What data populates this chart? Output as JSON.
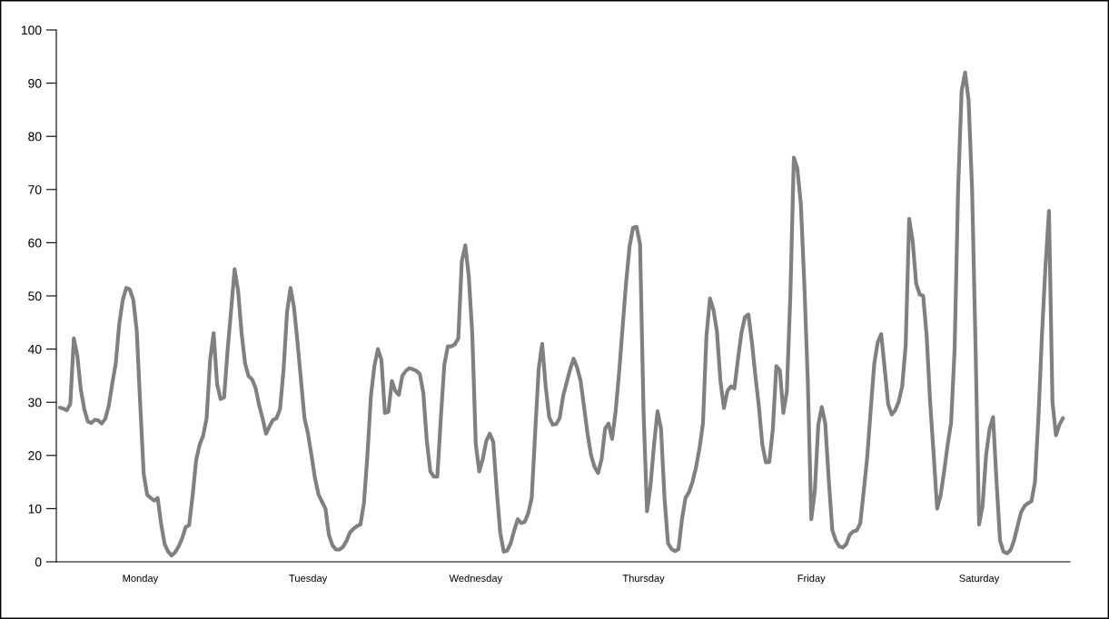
{
  "chart_data": {
    "type": "line",
    "ylim": [
      0,
      100
    ],
    "categories": [
      null,
      null,
      null,
      null,
      null,
      null,
      null,
      null,
      null,
      null,
      null,
      null,
      null,
      null,
      null,
      null,
      null,
      null,
      null,
      null,
      null,
      null,
      null,
      "Monday",
      null,
      null,
      null,
      null,
      null,
      null,
      null,
      null,
      null,
      null,
      null,
      null,
      null,
      null,
      null,
      null,
      null,
      null,
      null,
      null,
      null,
      null,
      null,
      null,
      null,
      null,
      null,
      null,
      null,
      null,
      null,
      null,
      null,
      null,
      null,
      null,
      null,
      null,
      null,
      null,
      null,
      null,
      null,
      null,
      null,
      null,
      null,
      "Tuesday",
      null,
      null,
      null,
      null,
      null,
      null,
      null,
      null,
      null,
      null,
      null,
      null,
      null,
      null,
      null,
      null,
      null,
      null,
      null,
      null,
      null,
      null,
      null,
      null,
      null,
      null,
      null,
      null,
      null,
      null,
      null,
      null,
      null,
      null,
      null,
      null,
      null,
      null,
      null,
      null,
      null,
      null,
      null,
      null,
      null,
      null,
      null,
      "Wednesday",
      null,
      null,
      null,
      null,
      null,
      null,
      null,
      null,
      null,
      null,
      null,
      null,
      null,
      null,
      null,
      null,
      null,
      null,
      null,
      null,
      null,
      null,
      null,
      null,
      null,
      null,
      null,
      null,
      null,
      null,
      null,
      null,
      null,
      null,
      null,
      null,
      null,
      null,
      null,
      null,
      null,
      null,
      null,
      null,
      null,
      null,
      null,
      "Thursday",
      null,
      null,
      null,
      null,
      null,
      null,
      null,
      null,
      null,
      null,
      null,
      null,
      null,
      null,
      null,
      null,
      null,
      null,
      null,
      null,
      null,
      null,
      null,
      null,
      null,
      null,
      null,
      null,
      null,
      null,
      null,
      null,
      null,
      null,
      null,
      null,
      null,
      null,
      null,
      null,
      null,
      null,
      null,
      null,
      null,
      null,
      null,
      "Friday",
      null,
      null,
      null,
      null,
      null,
      null,
      null,
      null,
      null,
      null,
      null,
      null,
      null,
      null,
      null,
      null,
      null,
      null,
      null,
      null,
      null,
      null,
      null,
      null,
      null,
      null,
      null,
      null,
      null,
      null,
      null,
      null,
      null,
      null,
      null,
      null,
      null,
      null,
      null,
      null,
      null,
      null,
      null,
      null,
      null,
      null,
      null,
      "Saturday",
      null,
      null,
      null,
      null,
      null,
      null,
      null,
      null,
      null,
      null,
      null,
      null,
      null,
      null,
      null,
      null,
      null,
      null,
      null,
      null,
      null,
      null,
      null,
      null
    ],
    "yticks": [
      0,
      10,
      20,
      30,
      40,
      50,
      60,
      70,
      80,
      90,
      100
    ],
    "grid": false,
    "legend": false,
    "marker": "none",
    "line_style": "solid",
    "series": [
      {
        "color": "#808080",
        "values": [
          29,
          28.8,
          28.5,
          29.7,
          42,
          38.8,
          32.4,
          28.7,
          26.4,
          26.1,
          26.7,
          26.6,
          26,
          26.9,
          29.3,
          33.5,
          37.3,
          44.7,
          49.2,
          51.5,
          51.2,
          49.3,
          43.5,
          29.6,
          16.5,
          12.6,
          12,
          11.5,
          12,
          7,
          3.3,
          1.9,
          1.2,
          1.8,
          2.9,
          4.4,
          6.5,
          6.9,
          12.5,
          19.1,
          22,
          23.7,
          27,
          38,
          43,
          33.4,
          30.6,
          30.9,
          39.8,
          47.3,
          55,
          51,
          43,
          37.3,
          34.9,
          34.3,
          32.7,
          29.5,
          27,
          24.1,
          25.5,
          26.7,
          27,
          28.7,
          36,
          46.9,
          51.5,
          47.8,
          41.3,
          34.1,
          27,
          24.1,
          20,
          15.7,
          12.7,
          11.3,
          10,
          5,
          3.1,
          2.3,
          2.3,
          2.8,
          3.9,
          5.5,
          6.2,
          6.7,
          7,
          11,
          20,
          31.2,
          36.8,
          40,
          38,
          28,
          28.2,
          34,
          32.1,
          31.4,
          35,
          35.9,
          36.4,
          36.2,
          35.9,
          35.3,
          31.7,
          22.7,
          17,
          16,
          16,
          27,
          37,
          40.5,
          40.5,
          40.9,
          42,
          56.5,
          59.5,
          53.7,
          42.9,
          22.1,
          17,
          19.3,
          22.7,
          24.1,
          22.6,
          13.4,
          5.5,
          1.9,
          2.1,
          3.5,
          5.9,
          8,
          7.3,
          7.5,
          9.1,
          12,
          24.3,
          36.3,
          41,
          33,
          27.2,
          25.8,
          25.9,
          27,
          31.2,
          33.7,
          36.2,
          38.2,
          36.5,
          34,
          29,
          24,
          20,
          17.8,
          16.7,
          19.3,
          25,
          26,
          23.1,
          28.2,
          35.5,
          44,
          52.4,
          59.3,
          62.8,
          63,
          59.7,
          28.3,
          9.5,
          14.4,
          22,
          28.3,
          25,
          12,
          3.5,
          2.4,
          2,
          2.4,
          8,
          12,
          13.1,
          15,
          17.7,
          21.3,
          26,
          42.5,
          49.5,
          47.4,
          43.3,
          34,
          28.9,
          32.1,
          33,
          32.6,
          38,
          43,
          46,
          46.5,
          41.3,
          35,
          29.2,
          22,
          18.7,
          18.8,
          25,
          36.8,
          36,
          28,
          32,
          50,
          76,
          74,
          67.3,
          52.3,
          33.8,
          8,
          13.3,
          25.8,
          29.1,
          26,
          15.3,
          6,
          4,
          2.9,
          2.7,
          3.3,
          5.1,
          5.7,
          5.9,
          7.2,
          13.3,
          19.7,
          28.6,
          37.2,
          41.3,
          42.8,
          36.3,
          29.6,
          27.7,
          28.5,
          30.1,
          33,
          40.7,
          64.5,
          60.3,
          52.3,
          50.3,
          50,
          42.5,
          30,
          20.2,
          10,
          12.5,
          17,
          22,
          26.2,
          40,
          70,
          88.5,
          92,
          86.8,
          70,
          40,
          7,
          10.5,
          20,
          25,
          27.2,
          15,
          4,
          1.9,
          1.6,
          2.2,
          4,
          6.7,
          9.3,
          10.5,
          11,
          11.4,
          15.1,
          27.5,
          42.8,
          55.6,
          66,
          30,
          23.8,
          25.8,
          27
        ]
      }
    ]
  }
}
